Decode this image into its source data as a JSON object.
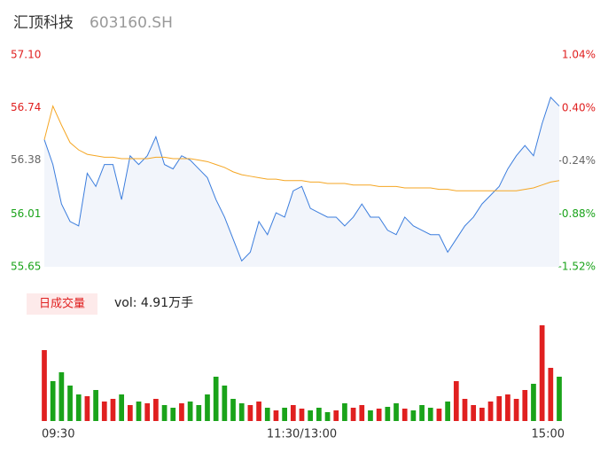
{
  "header": {
    "title": "汇顶科技",
    "code": "603160.SH"
  },
  "volume_label": "日成交量",
  "volume_text": "vol: 4.91万手",
  "chart_data": {
    "type": "line",
    "xlim": [
      0,
      240
    ],
    "xticks": [
      {
        "value": 0,
        "label": "09:30"
      },
      {
        "value": 120,
        "label": "11:30/13:00"
      },
      {
        "value": 240,
        "label": "15:00"
      }
    ],
    "ylim": [
      55.65,
      57.1
    ],
    "yticks": [
      {
        "value": 57.1,
        "label": "57.10"
      },
      56.74,
      56.38,
      56.01,
      55.65
    ],
    "y2lim": [
      -1.52,
      1.04
    ],
    "y2ticks": [
      {
        "value": 1.04,
        "label": "1.04%"
      },
      {
        "value": 0.4,
        "label": "0.40%"
      },
      {
        "value": -0.24,
        "label": "-0.24%"
      },
      {
        "value": -0.88,
        "label": "-0.88%"
      },
      {
        "value": -1.52,
        "label": "-1.52%"
      }
    ],
    "x": [
      0,
      4,
      8,
      12,
      16,
      20,
      24,
      28,
      32,
      36,
      40,
      44,
      48,
      52,
      56,
      60,
      64,
      68,
      72,
      76,
      80,
      84,
      88,
      92,
      96,
      100,
      104,
      108,
      112,
      116,
      120,
      124,
      128,
      132,
      136,
      140,
      144,
      148,
      152,
      156,
      160,
      164,
      168,
      172,
      176,
      180,
      184,
      188,
      192,
      196,
      200,
      204,
      208,
      212,
      216,
      220,
      224,
      228,
      232,
      236,
      240
    ],
    "series": [
      {
        "color": "#3b7ddd",
        "values": [
          56.52,
          56.35,
          56.08,
          55.96,
          55.93,
          56.29,
          56.2,
          56.35,
          56.35,
          56.11,
          56.41,
          56.35,
          56.41,
          56.54,
          56.35,
          56.32,
          56.41,
          56.38,
          56.32,
          56.26,
          56.11,
          55.99,
          55.84,
          55.69,
          55.75,
          55.96,
          55.87,
          56.02,
          55.99,
          56.17,
          56.2,
          56.05,
          56.02,
          55.99,
          55.99,
          55.93,
          55.99,
          56.08,
          55.99,
          55.99,
          55.9,
          55.87,
          55.99,
          55.93,
          55.9,
          55.87,
          55.87,
          55.75,
          55.84,
          55.93,
          55.99,
          56.08,
          56.14,
          56.2,
          56.32,
          56.41,
          56.48,
          56.41,
          56.63,
          56.81,
          56.75
        ]
      },
      {
        "color": "#f5a623",
        "values": [
          56.52,
          56.75,
          56.62,
          56.5,
          56.45,
          56.42,
          56.41,
          56.4,
          56.4,
          56.39,
          56.39,
          56.39,
          56.39,
          56.4,
          56.4,
          56.39,
          56.39,
          56.39,
          56.38,
          56.37,
          56.35,
          56.33,
          56.3,
          56.28,
          56.27,
          56.26,
          56.25,
          56.25,
          56.24,
          56.24,
          56.24,
          56.23,
          56.23,
          56.22,
          56.22,
          56.22,
          56.21,
          56.21,
          56.21,
          56.2,
          56.2,
          56.2,
          56.19,
          56.19,
          56.19,
          56.19,
          56.18,
          56.18,
          56.17,
          56.17,
          56.17,
          56.17,
          56.17,
          56.17,
          56.17,
          56.17,
          56.18,
          56.19,
          56.21,
          56.23,
          56.24
        ]
      }
    ],
    "volume": {
      "ylim": [
        0,
        110
      ],
      "up_color": "#e02020",
      "down_color": "#1aa31a",
      "values": [
        80,
        45,
        55,
        40,
        30,
        28,
        35,
        22,
        25,
        30,
        18,
        22,
        20,
        25,
        18,
        15,
        20,
        22,
        18,
        30,
        50,
        40,
        25,
        20,
        18,
        22,
        15,
        12,
        15,
        18,
        14,
        12,
        15,
        10,
        12,
        20,
        15,
        18,
        12,
        14,
        16,
        20,
        14,
        12,
        18,
        15,
        14,
        22,
        45,
        25,
        18,
        15,
        22,
        28,
        30,
        25,
        35,
        42,
        108,
        60,
        50
      ]
    }
  }
}
